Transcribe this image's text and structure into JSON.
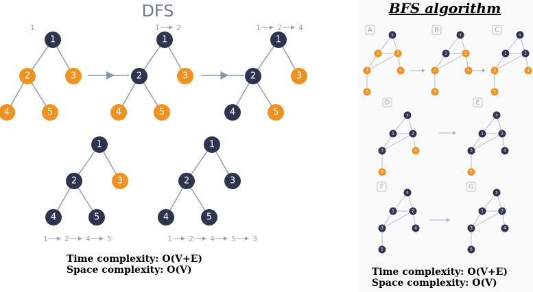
{
  "dfs": {
    "title": "DFS",
    "complexity_time": "Time complexity: O(V+E)",
    "complexity_space": "Space complexity: O(V)",
    "colors": {
      "visited": "#2e3450",
      "unvisited": "#f0921f",
      "edge": "#9aa3ad",
      "arrow": "#8797a8"
    },
    "steps": [
      {
        "visited": [
          "1"
        ],
        "order": [
          "1"
        ]
      },
      {
        "visited": [
          "1",
          "2"
        ],
        "order": [
          "1",
          "2"
        ]
      },
      {
        "visited": [
          "1",
          "2",
          "4"
        ],
        "order": [
          "1",
          "2",
          "4"
        ]
      },
      {
        "visited": [
          "1",
          "2",
          "4",
          "5"
        ],
        "order": [
          "1",
          "2",
          "4",
          "5"
        ]
      },
      {
        "visited": [
          "1",
          "2",
          "3",
          "4",
          "5"
        ],
        "order": [
          "1",
          "2",
          "4",
          "5",
          "3"
        ]
      }
    ],
    "graph": {
      "nodes": [
        "1",
        "2",
        "3",
        "4",
        "5"
      ],
      "edges": [
        [
          "1",
          "2"
        ],
        [
          "1",
          "3"
        ],
        [
          "2",
          "4"
        ],
        [
          "2",
          "5"
        ]
      ]
    }
  },
  "bfs": {
    "title": "BFS algorithm",
    "complexity_time": "Time complexity: O(V+E)",
    "complexity_space": "Space complexity: O(V)",
    "colors": {
      "visited": "#2e3450",
      "unvisited": "#f0921f",
      "edge": "#b5bcc4",
      "box": "#b9c2cc"
    },
    "graph": {
      "nodes": [
        "s",
        "1",
        "2",
        "3",
        "4",
        "5"
      ],
      "edges": [
        [
          "s",
          "1"
        ],
        [
          "s",
          "2"
        ],
        [
          "1",
          "2"
        ],
        [
          "1",
          "3"
        ],
        [
          "2",
          "3"
        ],
        [
          "2",
          "4"
        ],
        [
          "3",
          "5"
        ]
      ]
    },
    "steps": [
      {
        "label": "A",
        "visited": [
          "s"
        ]
      },
      {
        "label": "B",
        "visited": [
          "s",
          "1"
        ]
      },
      {
        "label": "C",
        "visited": [
          "s",
          "1",
          "2"
        ]
      },
      {
        "label": "D",
        "visited": [
          "s",
          "1",
          "2",
          "3"
        ]
      },
      {
        "label": "E",
        "visited": [
          "s",
          "1",
          "2",
          "3",
          "4"
        ]
      },
      {
        "label": "F",
        "visited": [
          "s",
          "1",
          "2",
          "3",
          "4",
          "5"
        ]
      },
      {
        "label": "G",
        "visited": [
          "s",
          "1",
          "2",
          "3",
          "4",
          "5"
        ]
      }
    ]
  }
}
